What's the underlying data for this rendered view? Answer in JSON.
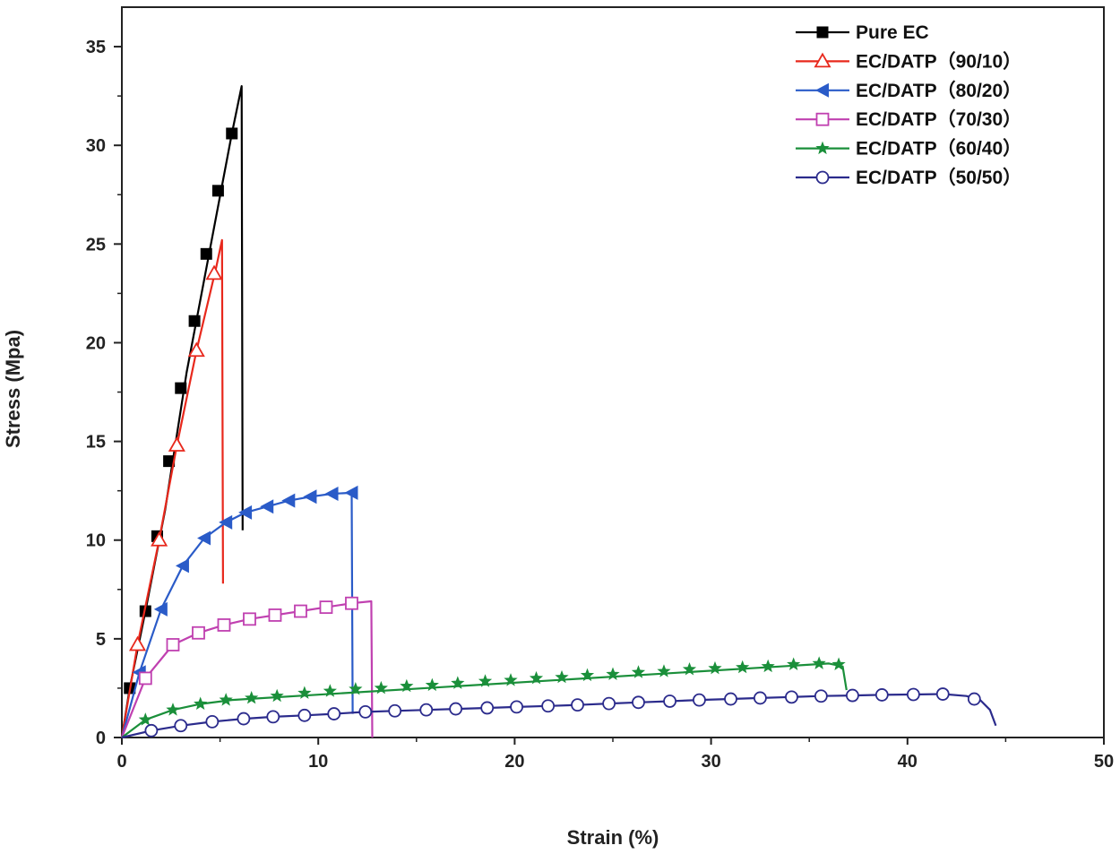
{
  "chart_data": {
    "type": "line",
    "title": "",
    "xlabel": "Strain (%)",
    "ylabel": "Stress (Mpa)",
    "xlim": [
      0,
      50
    ],
    "ylim": [
      0,
      37
    ],
    "x_ticks": [
      0,
      10,
      20,
      30,
      40,
      50
    ],
    "y_ticks": [
      0,
      5,
      10,
      15,
      20,
      25,
      30,
      35
    ],
    "x_tick_labels": [
      "0",
      "10",
      "20",
      "30",
      "40",
      "50"
    ],
    "y_tick_labels": [
      "0",
      "5",
      "10",
      "15",
      "20",
      "25",
      "30",
      "35"
    ],
    "legend_position": "top-right",
    "series": [
      {
        "name": "Pure EC",
        "color": "#000000",
        "marker": "filled-square",
        "line": [
          [
            0,
            0
          ],
          [
            0.4,
            2.5
          ],
          [
            1.2,
            6.4
          ],
          [
            2.2,
            11.5
          ],
          [
            3.3,
            18.5
          ],
          [
            4.5,
            24.8
          ],
          [
            5.6,
            30.6
          ],
          [
            6.1,
            33.0
          ],
          [
            6.15,
            10.5
          ]
        ],
        "markers": [
          [
            0.4,
            2.5
          ],
          [
            1.2,
            6.4
          ],
          [
            1.8,
            10.2
          ],
          [
            2.4,
            14.0
          ],
          [
            3.0,
            17.7
          ],
          [
            3.7,
            21.1
          ],
          [
            4.3,
            24.5
          ],
          [
            4.9,
            27.7
          ],
          [
            5.6,
            30.6
          ]
        ]
      },
      {
        "name": "EC/DATP（90/10）",
        "color": "#e8281c",
        "marker": "open-triangle-up",
        "line": [
          [
            0,
            0
          ],
          [
            0.8,
            4.7
          ],
          [
            1.9,
            10.0
          ],
          [
            2.8,
            14.8
          ],
          [
            3.8,
            19.6
          ],
          [
            4.8,
            23.8
          ],
          [
            5.1,
            25.2
          ],
          [
            5.15,
            7.8
          ]
        ],
        "markers": [
          [
            0.8,
            4.7
          ],
          [
            1.9,
            10.0
          ],
          [
            2.8,
            14.8
          ],
          [
            3.8,
            19.6
          ],
          [
            4.7,
            23.5
          ]
        ]
      },
      {
        "name": "EC/DATP（80/20）",
        "color": "#2a5bc8",
        "marker": "filled-triangle-left",
        "line": [
          [
            0,
            0
          ],
          [
            0.9,
            3.3
          ],
          [
            2.0,
            6.5
          ],
          [
            3.1,
            8.7
          ],
          [
            4.2,
            10.1
          ],
          [
            5.3,
            10.9
          ],
          [
            6.3,
            11.4
          ],
          [
            7.4,
            11.7
          ],
          [
            8.5,
            12.0
          ],
          [
            9.6,
            12.2
          ],
          [
            10.7,
            12.35
          ],
          [
            11.7,
            12.4
          ],
          [
            11.75,
            1.2
          ]
        ],
        "markers": [
          [
            0.9,
            3.3
          ],
          [
            2.0,
            6.5
          ],
          [
            3.1,
            8.7
          ],
          [
            4.2,
            10.1
          ],
          [
            5.3,
            10.9
          ],
          [
            6.3,
            11.4
          ],
          [
            7.4,
            11.7
          ],
          [
            8.5,
            12.0
          ],
          [
            9.6,
            12.2
          ],
          [
            10.7,
            12.35
          ],
          [
            11.7,
            12.4
          ]
        ]
      },
      {
        "name": "EC/DATP（70/30）",
        "color": "#c040b0",
        "marker": "open-square",
        "line": [
          [
            0,
            0
          ],
          [
            1.2,
            3.0
          ],
          [
            2.6,
            4.7
          ],
          [
            3.9,
            5.3
          ],
          [
            5.2,
            5.7
          ],
          [
            6.5,
            6.0
          ],
          [
            7.8,
            6.2
          ],
          [
            9.1,
            6.4
          ],
          [
            10.4,
            6.6
          ],
          [
            11.7,
            6.8
          ],
          [
            12.7,
            6.9
          ],
          [
            12.75,
            0
          ]
        ],
        "markers": [
          [
            1.2,
            3.0
          ],
          [
            2.6,
            4.7
          ],
          [
            3.9,
            5.3
          ],
          [
            5.2,
            5.7
          ],
          [
            6.5,
            6.0
          ],
          [
            7.8,
            6.2
          ],
          [
            9.1,
            6.4
          ],
          [
            10.4,
            6.6
          ],
          [
            11.7,
            6.8
          ]
        ]
      },
      {
        "name": "EC/DATP（60/40）",
        "color": "#1a8f3a",
        "marker": "filled-star",
        "line": [
          [
            0,
            0
          ],
          [
            1.2,
            0.9
          ],
          [
            2.6,
            1.4
          ],
          [
            4.0,
            1.7
          ],
          [
            5.6,
            1.9
          ],
          [
            36.0,
            3.75
          ],
          [
            36.7,
            3.6
          ],
          [
            36.9,
            2.4
          ]
        ],
        "markers": [
          [
            1.2,
            0.9
          ],
          [
            2.6,
            1.4
          ],
          [
            4.0,
            1.7
          ],
          [
            5.3,
            1.9
          ],
          [
            6.6,
            2.0
          ],
          [
            7.9,
            2.1
          ],
          [
            9.3,
            2.25
          ],
          [
            10.6,
            2.35
          ],
          [
            11.9,
            2.45
          ],
          [
            13.2,
            2.5
          ],
          [
            14.5,
            2.6
          ],
          [
            15.8,
            2.65
          ],
          [
            17.1,
            2.75
          ],
          [
            18.5,
            2.85
          ],
          [
            19.8,
            2.9
          ],
          [
            21.1,
            3.0
          ],
          [
            22.4,
            3.05
          ],
          [
            23.7,
            3.15
          ],
          [
            25.0,
            3.2
          ],
          [
            26.3,
            3.3
          ],
          [
            27.6,
            3.35
          ],
          [
            28.9,
            3.45
          ],
          [
            30.2,
            3.5
          ],
          [
            31.6,
            3.55
          ],
          [
            32.9,
            3.6
          ],
          [
            34.2,
            3.7
          ],
          [
            35.5,
            3.75
          ],
          [
            36.5,
            3.7
          ]
        ]
      },
      {
        "name": "EC/DATP（50/50）",
        "color": "#2b2b8c",
        "marker": "open-circle",
        "line": [
          [
            0,
            0
          ],
          [
            1.5,
            0.35
          ],
          [
            3.0,
            0.6
          ],
          [
            4.6,
            0.8
          ],
          [
            6.2,
            0.95
          ],
          [
            7.7,
            1.05
          ],
          [
            9.3,
            1.12
          ],
          [
            10.8,
            1.2
          ],
          [
            12.4,
            1.3
          ],
          [
            13.9,
            1.35
          ],
          [
            15.5,
            1.4
          ],
          [
            17.0,
            1.45
          ],
          [
            18.6,
            1.5
          ],
          [
            20.1,
            1.55
          ],
          [
            21.7,
            1.6
          ],
          [
            23.2,
            1.65
          ],
          [
            24.8,
            1.72
          ],
          [
            26.3,
            1.78
          ],
          [
            27.9,
            1.84
          ],
          [
            29.4,
            1.9
          ],
          [
            31.0,
            1.95
          ],
          [
            32.5,
            2.0
          ],
          [
            34.1,
            2.05
          ],
          [
            35.6,
            2.1
          ],
          [
            37.2,
            2.13
          ],
          [
            38.7,
            2.16
          ],
          [
            40.3,
            2.18
          ],
          [
            41.8,
            2.2
          ],
          [
            43.0,
            2.1
          ],
          [
            43.7,
            1.9
          ],
          [
            44.2,
            1.4
          ],
          [
            44.5,
            0.6
          ]
        ],
        "markers": [
          [
            1.5,
            0.35
          ],
          [
            3.0,
            0.6
          ],
          [
            4.6,
            0.8
          ],
          [
            6.2,
            0.95
          ],
          [
            7.7,
            1.05
          ],
          [
            9.3,
            1.12
          ],
          [
            10.8,
            1.2
          ],
          [
            12.4,
            1.3
          ],
          [
            13.9,
            1.35
          ],
          [
            15.5,
            1.4
          ],
          [
            17.0,
            1.45
          ],
          [
            18.6,
            1.5
          ],
          [
            20.1,
            1.55
          ],
          [
            21.7,
            1.6
          ],
          [
            23.2,
            1.65
          ],
          [
            24.8,
            1.72
          ],
          [
            26.3,
            1.78
          ],
          [
            27.9,
            1.84
          ],
          [
            29.4,
            1.9
          ],
          [
            31.0,
            1.95
          ],
          [
            32.5,
            2.0
          ],
          [
            34.1,
            2.05
          ],
          [
            35.6,
            2.1
          ],
          [
            37.2,
            2.13
          ],
          [
            38.7,
            2.16
          ],
          [
            40.3,
            2.18
          ],
          [
            41.8,
            2.2
          ],
          [
            43.4,
            1.95
          ]
        ]
      }
    ]
  }
}
